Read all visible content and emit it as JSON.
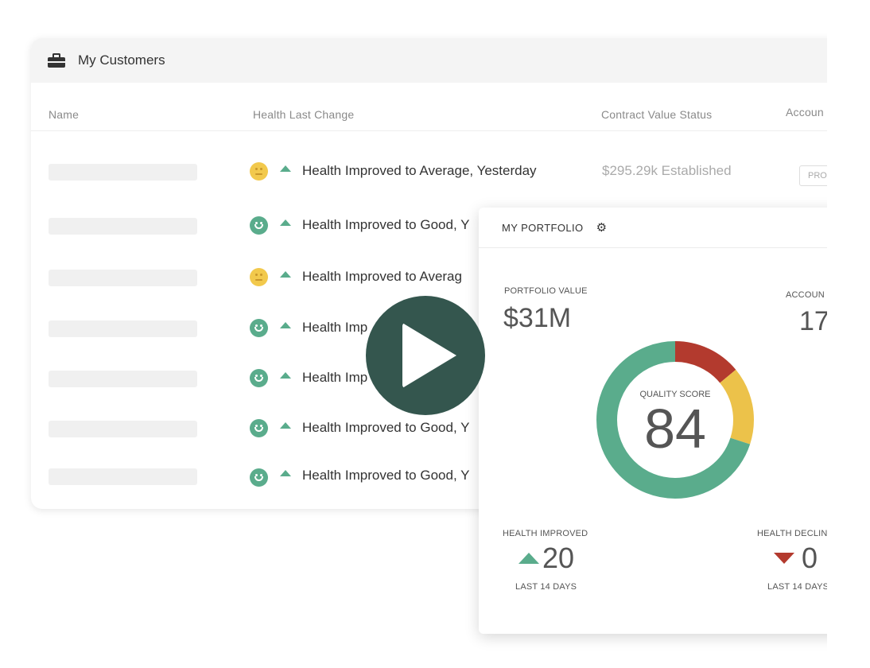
{
  "customers": {
    "title": "My Customers",
    "columns": [
      "Name",
      "Health Last Change",
      "Contract Value Status",
      "Accoun"
    ],
    "rows": [
      {
        "health": "average",
        "change": "Health Improved to Average, Yesterday",
        "contract": "$295.29k  Established",
        "tag": "PRO"
      },
      {
        "health": "good",
        "change": "Health Improved to Good, Y"
      },
      {
        "health": "average",
        "change": "Health Improved to Averag"
      },
      {
        "health": "good",
        "change": "Health Imp"
      },
      {
        "health": "good",
        "change": "Health Imp"
      },
      {
        "health": "good",
        "change": "Health Improved to Good, Y"
      },
      {
        "health": "good",
        "change": "Health Improved to Good, Y"
      }
    ]
  },
  "portfolio": {
    "title": "MY PORTFOLIO",
    "value_label": "PORTFOLIO VALUE",
    "value": "$31M",
    "accounts_label": "ACCOUN",
    "accounts": "17",
    "quality_label": "QUALITY SCORE",
    "quality_score": "84",
    "donut_segments": [
      {
        "color": "#b33a2e",
        "fraction": 0.14
      },
      {
        "color": "#ecc24a",
        "fraction": 0.16
      },
      {
        "color": "#5aac8c",
        "fraction": 0.7
      }
    ],
    "improved_label": "HEALTH IMPROVED",
    "improved": "20",
    "improved_period": "LAST 14 DAYS",
    "declined_label": "HEALTH DECLIN",
    "declined": "0",
    "declined_period": "LAST 14 DAYS"
  },
  "colors": {
    "good": "#5aac8c",
    "average": "#f2c94c",
    "decline": "#b33a2e",
    "play": "#34564e"
  },
  "icons": {
    "header": "briefcase-icon",
    "settings": "gear-icon",
    "video": "play-icon"
  }
}
